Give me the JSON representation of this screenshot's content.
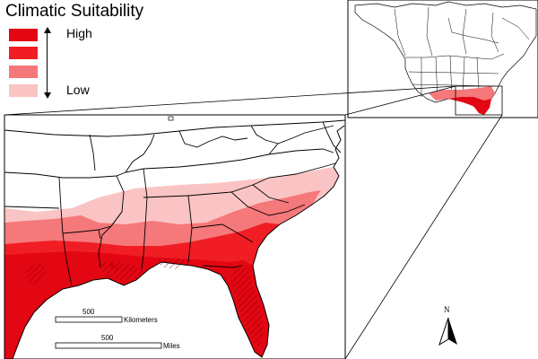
{
  "legend": {
    "title": "Climatic Suitability",
    "high_label": "High",
    "low_label": "Low",
    "classes": [
      {
        "rank": 1,
        "color": "#e30613"
      },
      {
        "rank": 2,
        "color": "#f01e24"
      },
      {
        "rank": 3,
        "color": "#f5787a"
      },
      {
        "rank": 4,
        "color": "#fbc4c4"
      }
    ]
  },
  "scalebar": {
    "km_value": "500",
    "km_unit": "Kilometers",
    "mi_value": "500",
    "mi_unit": "Miles"
  },
  "north_arrow": {
    "label": "N"
  },
  "colors": {
    "land": "#ffffff",
    "border": "#000000",
    "hatch": "#7a0000"
  },
  "icons": [
    "north-arrow-icon",
    "double-arrow-icon"
  ]
}
